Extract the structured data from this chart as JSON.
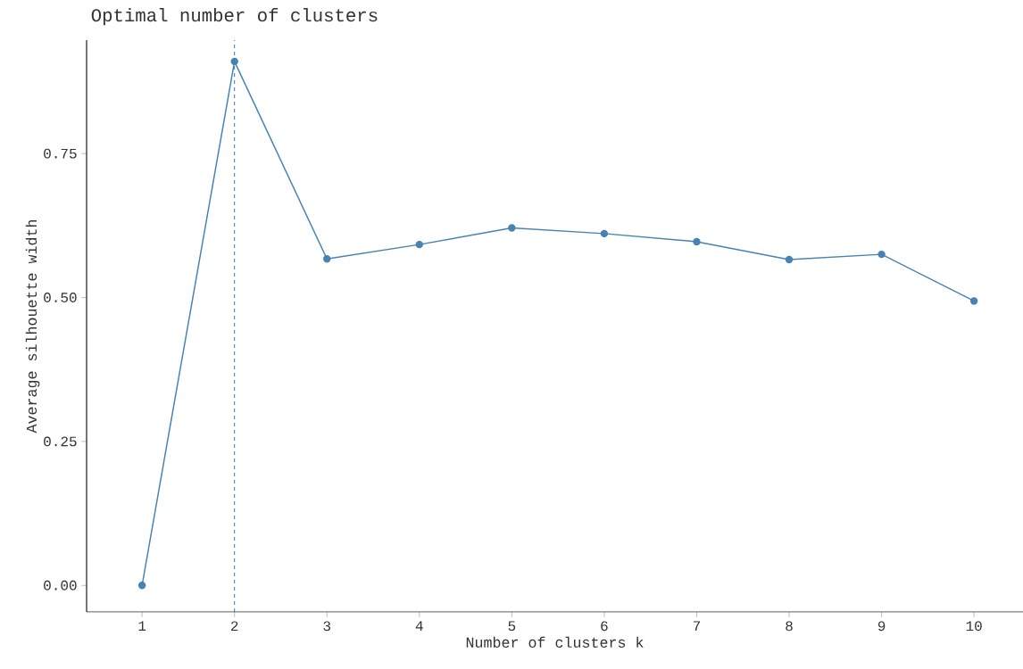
{
  "chart_data": {
    "type": "line",
    "title": "Optimal number of clusters",
    "xlabel": "Number of clusters k",
    "ylabel": "Average silhouette width",
    "categories": [
      "1",
      "2",
      "3",
      "4",
      "5",
      "6",
      "7",
      "8",
      "9",
      "10"
    ],
    "series": [
      {
        "color": "#4682b4",
        "values": [
          0.0,
          0.91,
          0.567,
          0.592,
          0.621,
          0.611,
          0.597,
          0.566,
          0.575,
          0.494
        ]
      }
    ],
    "ylim": [
      -0.046,
      0.947
    ],
    "yticks": [
      {
        "value": 0,
        "label": "0.00"
      },
      {
        "value": 0.25,
        "label": "0.25"
      },
      {
        "value": 0.5,
        "label": "0.50"
      },
      {
        "value": 0.75,
        "label": "0.75"
      }
    ],
    "ref_lines": [
      {
        "axis": "x",
        "value": "2",
        "color": "#4682b4",
        "line_style": "dashed"
      }
    ],
    "marker": "circle",
    "line_style": "solid",
    "grid": false
  }
}
